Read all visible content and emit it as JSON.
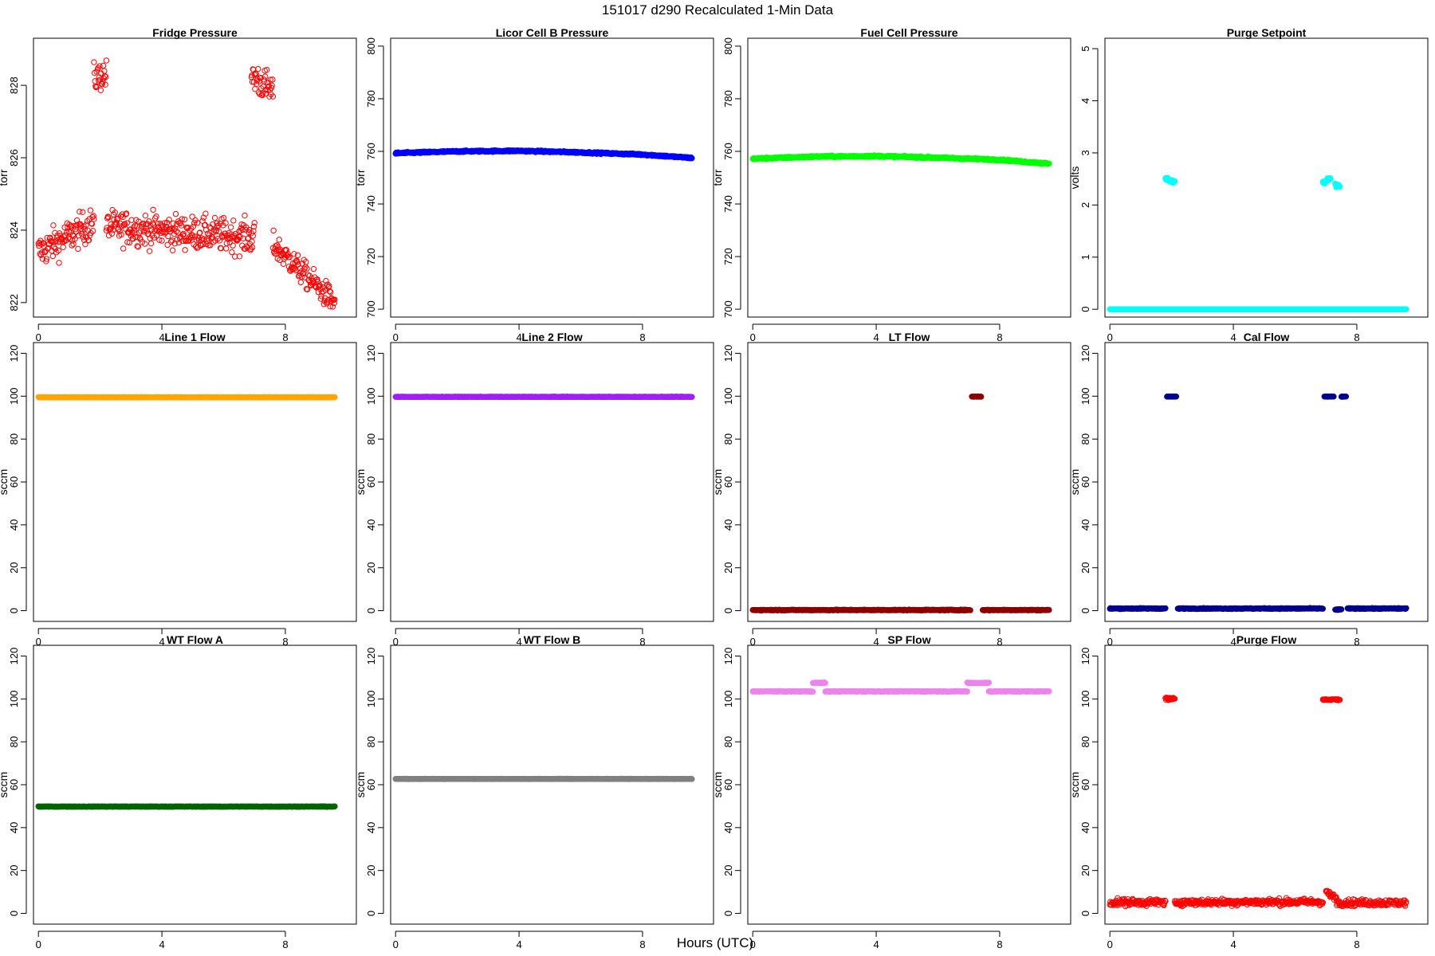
{
  "figure": {
    "title": "151017   d290   Recalculated 1-Min Data",
    "xlabel": "Hours (UTC)"
  },
  "chart_data": [
    {
      "type": "scatter",
      "title": "Fridge Pressure",
      "ylabel": "torr",
      "xlim": [
        0,
        9.6
      ],
      "ylim": [
        821.6,
        829.3
      ],
      "xticks": [
        0,
        4,
        8
      ],
      "yticks": [
        822,
        824,
        826,
        828
      ],
      "color": "#ff0000",
      "marker": "open",
      "series": [
        {
          "segments": [
            {
              "x_range": [
                0.0,
                1.8
              ],
              "y_trend": [
                823.4,
                824.2
              ],
              "noise": 0.45
            },
            {
              "x_range": [
                1.8,
                2.2
              ],
              "y_trend": [
                828.2,
                828.3
              ],
              "noise": 0.4
            },
            {
              "x_range": [
                2.2,
                7.0
              ],
              "y_trend": [
                824.1,
                823.8
              ],
              "noise": 0.45
            },
            {
              "x_range": [
                6.9,
                7.6
              ],
              "y_trend": [
                828.3,
                827.8
              ],
              "noise": 0.45
            },
            {
              "x_range": [
                7.6,
                9.6
              ],
              "y_trend": [
                823.6,
                822.0
              ],
              "noise": 0.35
            }
          ]
        }
      ]
    },
    {
      "type": "scatter",
      "title": "Licor Cell B Pressure",
      "ylabel": "torr",
      "xlim": [
        0,
        9.6
      ],
      "ylim": [
        697,
        803
      ],
      "xticks": [
        0,
        4,
        8
      ],
      "yticks": [
        700,
        720,
        740,
        760,
        780,
        800
      ],
      "color": "#0000ff",
      "marker": "filled",
      "series": [
        {
          "segments": [
            {
              "x_range": [
                0.0,
                9.6
              ],
              "y_points": [
                [
                  0,
                  759.3
                ],
                [
                  2,
                  760
                ],
                [
                  4,
                  760.2
                ],
                [
                  6,
                  759.6
                ],
                [
                  8,
                  758.8
                ],
                [
                  9.6,
                  757.5
                ]
              ],
              "noise": 0.3
            }
          ]
        }
      ]
    },
    {
      "type": "scatter",
      "title": "Fuel Cell Pressure",
      "ylabel": "torr",
      "xlim": [
        0,
        9.6
      ],
      "ylim": [
        697,
        803
      ],
      "xticks": [
        0,
        4,
        8
      ],
      "yticks": [
        700,
        720,
        740,
        760,
        780,
        800
      ],
      "color": "#00ff00",
      "marker": "filled",
      "series": [
        {
          "segments": [
            {
              "x_range": [
                0.0,
                9.6
              ],
              "y_points": [
                [
                  0,
                  757.2
                ],
                [
                  2,
                  758
                ],
                [
                  4,
                  758.2
                ],
                [
                  6,
                  757.6
                ],
                [
                  8,
                  756.8
                ],
                [
                  9.6,
                  755.3
                ]
              ],
              "noise": 0.3
            }
          ]
        }
      ]
    },
    {
      "type": "scatter",
      "title": "Purge Setpoint",
      "ylabel": "volts",
      "xlim": [
        0,
        9.6
      ],
      "ylim": [
        -0.15,
        5.2
      ],
      "xticks": [
        0,
        4,
        8
      ],
      "yticks": [
        0,
        1,
        2,
        3,
        4,
        5
      ],
      "color": "#00ffff",
      "marker": "filled",
      "series": [
        {
          "segments": [
            {
              "x_range": [
                0.0,
                9.6
              ],
              "y_trend": [
                0,
                0
              ],
              "noise": 0
            },
            {
              "x_range": [
                1.8,
                2.1
              ],
              "y_trend": [
                2.5,
                2.43
              ],
              "noise": 0.04
            },
            {
              "x_range": [
                6.9,
                7.15
              ],
              "y_trend": [
                2.42,
                2.52
              ],
              "noise": 0.04
            },
            {
              "x_range": [
                7.3,
                7.45
              ],
              "y_trend": [
                2.38,
                2.38
              ],
              "noise": 0.03
            }
          ]
        }
      ]
    },
    {
      "type": "scatter",
      "title": "Line 1 Flow",
      "ylabel": "sccm",
      "xlim": [
        0,
        9.6
      ],
      "ylim": [
        -5,
        125
      ],
      "xticks": [
        0,
        4,
        8
      ],
      "yticks": [
        0,
        20,
        40,
        60,
        80,
        100,
        120
      ],
      "color": "#ffa500",
      "marker": "filled",
      "series": [
        {
          "segments": [
            {
              "x_range": [
                0.0,
                9.6
              ],
              "y_trend": [
                99.5,
                99.5
              ],
              "noise": 0.1
            }
          ]
        }
      ]
    },
    {
      "type": "scatter",
      "title": "Line 2 Flow",
      "ylabel": "sccm",
      "xlim": [
        0,
        9.6
      ],
      "ylim": [
        -5,
        125
      ],
      "xticks": [
        0,
        4,
        8
      ],
      "yticks": [
        0,
        20,
        40,
        60,
        80,
        100,
        120
      ],
      "color": "#a020f0",
      "marker": "filled",
      "series": [
        {
          "segments": [
            {
              "x_range": [
                0.0,
                9.6
              ],
              "y_trend": [
                99.7,
                99.7
              ],
              "noise": 0.1
            }
          ]
        }
      ]
    },
    {
      "type": "scatter",
      "title": "LT Flow",
      "ylabel": "sccm",
      "xlim": [
        0,
        9.6
      ],
      "ylim": [
        -5,
        125
      ],
      "xticks": [
        0,
        4,
        8
      ],
      "yticks": [
        0,
        20,
        40,
        60,
        80,
        100,
        120
      ],
      "color": "#8b0000",
      "marker": "filled",
      "series": [
        {
          "segments": [
            {
              "x_range": [
                0.0,
                7.05
              ],
              "y_trend": [
                0.3,
                0.3
              ],
              "noise": 0.2
            },
            {
              "x_range": [
                7.1,
                7.4
              ],
              "y_trend": [
                99.8,
                99.8
              ],
              "noise": 0.1
            },
            {
              "x_range": [
                7.45,
                9.6
              ],
              "y_trend": [
                0.3,
                0.3
              ],
              "noise": 0.2
            }
          ]
        }
      ]
    },
    {
      "type": "scatter",
      "title": "Cal Flow",
      "ylabel": "sccm",
      "xlim": [
        0,
        9.6
      ],
      "ylim": [
        -5,
        125
      ],
      "xticks": [
        0,
        4,
        8
      ],
      "yticks": [
        0,
        20,
        40,
        60,
        80,
        100,
        120
      ],
      "color": "#00008b",
      "marker": "filled",
      "series": [
        {
          "segments": [
            {
              "x_range": [
                0.0,
                1.8
              ],
              "y_trend": [
                1,
                1
              ],
              "noise": 0.2
            },
            {
              "x_range": [
                1.85,
                2.15
              ],
              "y_trend": [
                99.8,
                99.8
              ],
              "noise": 0.1
            },
            {
              "x_range": [
                2.2,
                6.9
              ],
              "y_trend": [
                1,
                1
              ],
              "noise": 0.2
            },
            {
              "x_range": [
                6.95,
                7.25
              ],
              "y_trend": [
                99.8,
                99.8
              ],
              "noise": 0.1
            },
            {
              "x_range": [
                7.3,
                7.5
              ],
              "y_trend": [
                0.5,
                0.5
              ],
              "noise": 0.2
            },
            {
              "x_range": [
                7.5,
                7.65
              ],
              "y_trend": [
                99.8,
                99.8
              ],
              "noise": 0.1
            },
            {
              "x_range": [
                7.7,
                9.6
              ],
              "y_trend": [
                1,
                1
              ],
              "noise": 0.2
            }
          ]
        }
      ]
    },
    {
      "type": "scatter",
      "title": "WT Flow A",
      "ylabel": "sccm",
      "xlim": [
        0,
        9.6
      ],
      "ylim": [
        -5,
        125
      ],
      "xticks": [
        0,
        4,
        8
      ],
      "yticks": [
        0,
        20,
        40,
        60,
        80,
        100,
        120
      ],
      "color": "#006400",
      "marker": "filled",
      "series": [
        {
          "segments": [
            {
              "x_range": [
                0.0,
                9.6
              ],
              "y_trend": [
                49.8,
                49.8
              ],
              "noise": 0.1
            }
          ]
        }
      ]
    },
    {
      "type": "scatter",
      "title": "WT Flow B",
      "ylabel": "sccm",
      "xlim": [
        0,
        9.6
      ],
      "ylim": [
        -5,
        125
      ],
      "xticks": [
        0,
        4,
        8
      ],
      "yticks": [
        0,
        20,
        40,
        60,
        80,
        100,
        120
      ],
      "color": "#808080",
      "marker": "filled",
      "series": [
        {
          "segments": [
            {
              "x_range": [
                0.0,
                9.6
              ],
              "y_trend": [
                62.7,
                62.7
              ],
              "noise": 0.1
            }
          ]
        }
      ]
    },
    {
      "type": "scatter",
      "title": "SP Flow",
      "ylabel": "sccm",
      "xlim": [
        0,
        9.6
      ],
      "ylim": [
        -5,
        125
      ],
      "xticks": [
        0,
        4,
        8
      ],
      "yticks": [
        0,
        20,
        40,
        60,
        80,
        100,
        120
      ],
      "color": "#ee82ee",
      "marker": "filled",
      "series": [
        {
          "segments": [
            {
              "x_range": [
                0.0,
                1.95
              ],
              "y_trend": [
                103.5,
                103.5
              ],
              "noise": 0.15
            },
            {
              "x_range": [
                1.95,
                2.35
              ],
              "y_trend": [
                107.5,
                107.5
              ],
              "noise": 0.15
            },
            {
              "x_range": [
                2.35,
                6.95
              ],
              "y_trend": [
                103.5,
                103.5
              ],
              "noise": 0.15
            },
            {
              "x_range": [
                6.95,
                7.65
              ],
              "y_trend": [
                107.5,
                107.5
              ],
              "noise": 0.15
            },
            {
              "x_range": [
                7.65,
                9.6
              ],
              "y_trend": [
                103.5,
                103.5
              ],
              "noise": 0.15
            }
          ]
        }
      ]
    },
    {
      "type": "scatter",
      "title": "Purge Flow",
      "ylabel": "sccm",
      "xlim": [
        0,
        9.6
      ],
      "ylim": [
        -5,
        125
      ],
      "xticks": [
        0,
        4,
        8
      ],
      "yticks": [
        0,
        20,
        40,
        60,
        80,
        100,
        120
      ],
      "color": "#ff0000",
      "marker": "open",
      "series": [
        {
          "segments": [
            {
              "x_range": [
                0.0,
                1.8
              ],
              "y_trend": [
                5.2,
                5.2
              ],
              "noise": 1.6
            },
            {
              "x_range": [
                1.8,
                2.1
              ],
              "y_trend": [
                100.2,
                99.8
              ],
              "noise": 0.6
            },
            {
              "x_range": [
                2.1,
                6.9
              ],
              "y_trend": [
                5.2,
                5.4
              ],
              "noise": 1.5
            },
            {
              "x_range": [
                6.9,
                7.2
              ],
              "y_trend": [
                99.6,
                99.6
              ],
              "noise": 0.3
            },
            {
              "x_range": [
                7.3,
                7.45
              ],
              "y_trend": [
                99.6,
                99.6
              ],
              "noise": 0.3
            },
            {
              "x_range": [
                7.0,
                7.35
              ],
              "y_trend": [
                10,
                7
              ],
              "noise": 1.2
            },
            {
              "x_range": [
                7.35,
                9.6
              ],
              "y_trend": [
                5.0,
                5.0
              ],
              "noise": 1.5
            }
          ]
        }
      ]
    }
  ]
}
